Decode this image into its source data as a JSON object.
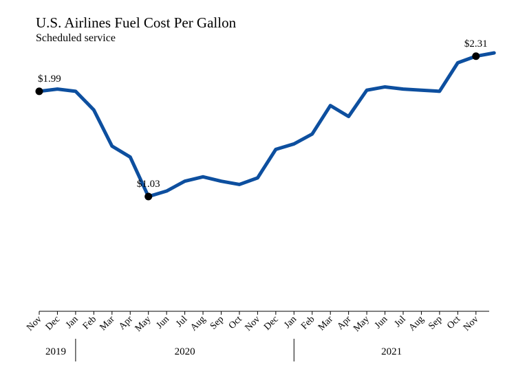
{
  "chart_data": {
    "type": "line",
    "title": "U.S. Airlines Fuel Cost Per Gallon",
    "subtitle": "Scheduled service",
    "categories": [
      "Nov",
      "Dec",
      "Jan",
      "Feb",
      "Mar",
      "Apr",
      "May",
      "Jun",
      "Jul",
      "Aug",
      "Sep",
      "Oct",
      "Nov",
      "Dec",
      "Jan",
      "Feb",
      "Mar",
      "Apr",
      "May",
      "Jun",
      "Jul",
      "Aug",
      "Sep",
      "Oct",
      "Nov",
      null
    ],
    "years": [
      "2019",
      "2020",
      "2021"
    ],
    "series": [
      {
        "name": null,
        "color": "#0d4f9f",
        "values": [
          1.99,
          2.01,
          1.99,
          1.82,
          1.49,
          1.39,
          1.03,
          1.08,
          1.17,
          1.21,
          1.17,
          1.14,
          1.2,
          1.46,
          1.51,
          1.6,
          1.86,
          1.76,
          2.0,
          2.03,
          2.01,
          2.0,
          1.99,
          2.25,
          2.31,
          2.34
        ],
        "value_labels": [
          "$1.99",
          null,
          null,
          null,
          null,
          null,
          "$1.03",
          null,
          null,
          null,
          null,
          null,
          null,
          null,
          null,
          null,
          null,
          null,
          null,
          null,
          null,
          null,
          null,
          null,
          "$2.31",
          null
        ]
      }
    ]
  }
}
